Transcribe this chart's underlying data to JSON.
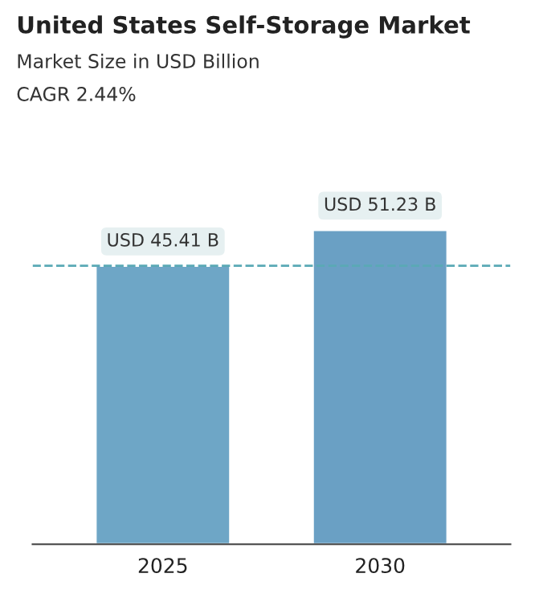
{
  "chart_data": {
    "type": "bar",
    "title": "United States Self-Storage Market",
    "subtitle": "Market Size in USD Billion",
    "annotations": [
      "CAGR 2.44%"
    ],
    "categories": [
      "2025",
      "2030"
    ],
    "values": [
      45.41,
      51.23
    ],
    "colors": [
      "#6ea6c6",
      "#6aa0c4"
    ],
    "value_labels": [
      "USD 45.41 B",
      "USD 51.23 B"
    ],
    "ref_lines": [
      {
        "axis": "y",
        "value": 45.41,
        "color": "#5aa9b5",
        "line_style": "dashed"
      }
    ],
    "grid": false,
    "legend": false,
    "tick_labels": "x"
  }
}
